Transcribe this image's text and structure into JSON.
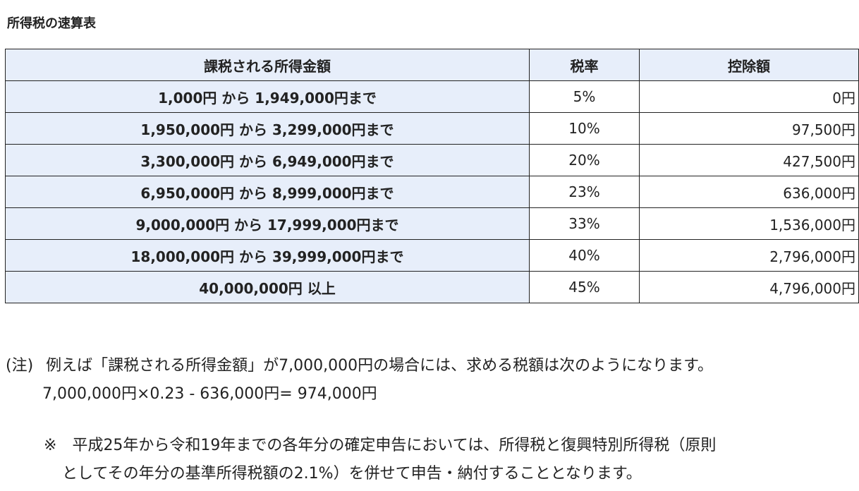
{
  "title": "所得税の速算表",
  "table": {
    "headers": [
      "課税される所得金額",
      "税率",
      "控除額"
    ],
    "rows": [
      {
        "range": "1,000円 から 1,949,000円まで",
        "rate": "5%",
        "deduction": "0円"
      },
      {
        "range": "1,950,000円 から 3,299,000円まで",
        "rate": "10%",
        "deduction": "97,500円"
      },
      {
        "range": "3,300,000円 から 6,949,000円まで",
        "rate": "20%",
        "deduction": "427,500円"
      },
      {
        "range": "6,950,000円 から 8,999,000円まで",
        "rate": "23%",
        "deduction": "636,000円"
      },
      {
        "range": "9,000,000円 から 17,999,000円まで",
        "rate": "33%",
        "deduction": "1,536,000円"
      },
      {
        "range": "18,000,000円 から 39,999,000円まで",
        "rate": "40%",
        "deduction": "2,796,000円"
      },
      {
        "range": "40,000,000円 以上",
        "rate": "45%",
        "deduction": "4,796,000円"
      }
    ]
  },
  "note": {
    "label": "(注)",
    "text": "例えば「課税される所得金額」が7,000,000円の場合には、求める税額は次のようになります。",
    "formula": "7,000,000円×0.23 - 636,000円= 974,000円"
  },
  "remark": {
    "mark": "※",
    "line1": "平成25年から令和19年までの各年分の確定申告においては、所得税と復興特別所得税（原則",
    "line2": "としてその年分の基準所得税額の2.1%）を併せて申告・納付することとなります。"
  },
  "colors": {
    "highlight_bg": "#e7eefa",
    "border": "#222222",
    "text": "#222222"
  }
}
